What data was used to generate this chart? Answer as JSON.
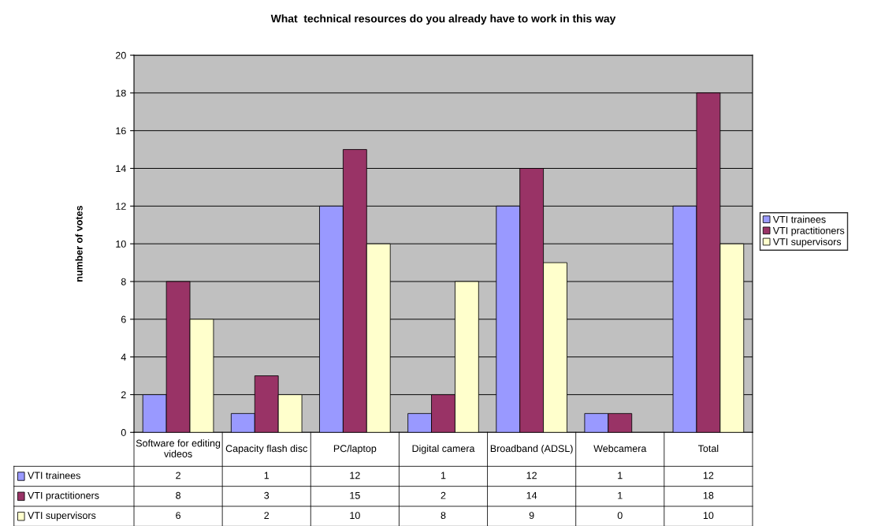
{
  "chart_data": {
    "type": "bar",
    "title": "What  technical resources do you already have to work in this way",
    "ylabel": "number of votes",
    "categories": [
      "Software for editing videos",
      "Capacity flash disc",
      "PC/laptop",
      "Digital camera",
      "Broadband (ADSL)",
      "Webcamera",
      "Total"
    ],
    "series": [
      {
        "name": "VTI trainees",
        "color": "#9999ff",
        "values": [
          2,
          1,
          12,
          1,
          12,
          1,
          12
        ]
      },
      {
        "name": "VTI practitioners",
        "color": "#993366",
        "values": [
          8,
          3,
          15,
          2,
          14,
          1,
          18
        ]
      },
      {
        "name": "VTI supervisors",
        "color": "#ffffcc",
        "values": [
          6,
          2,
          10,
          8,
          9,
          0,
          10
        ]
      }
    ],
    "ylim": [
      0,
      20
    ],
    "yticks": [
      0,
      2,
      4,
      6,
      8,
      10,
      12,
      14,
      16,
      18,
      20
    ],
    "grid": "y",
    "legend": "right",
    "data_labels": true
  }
}
